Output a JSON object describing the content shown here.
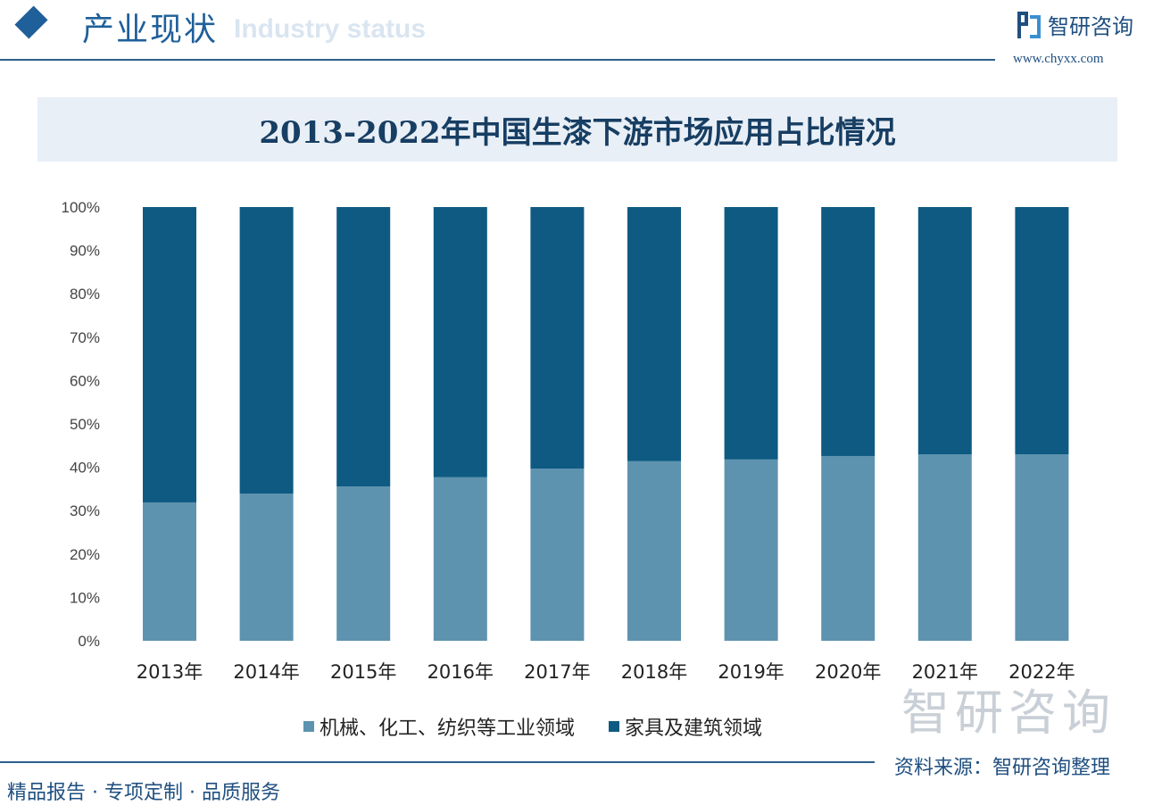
{
  "header": {
    "title": "产业现状",
    "subtitle": "Industry status",
    "brand": "智研咨询",
    "url": "www.chyxx.com"
  },
  "chart_data": {
    "type": "bar",
    "stacked": true,
    "percent": true,
    "title": "2013-2022年中国生漆下游市场应用占比情况",
    "categories": [
      "2013年",
      "2014年",
      "2015年",
      "2016年",
      "2017年",
      "2018年",
      "2019年",
      "2020年",
      "2021年",
      "2022年"
    ],
    "series": [
      {
        "name": "机械、化工、纺织等工业领域",
        "color": "#5e93b0",
        "values": [
          31.9,
          33.9,
          35.6,
          37.7,
          39.7,
          41.4,
          41.8,
          42.6,
          43.0,
          43.0
        ]
      },
      {
        "name": "家具及建筑领域",
        "color": "#0e5a82",
        "values": [
          68.1,
          66.1,
          64.4,
          62.3,
          60.3,
          58.6,
          58.2,
          57.4,
          57.0,
          57.0
        ]
      }
    ],
    "ylim": [
      0,
      100
    ],
    "yticks": [
      "0%",
      "10%",
      "20%",
      "30%",
      "40%",
      "50%",
      "60%",
      "70%",
      "80%",
      "90%",
      "100%"
    ],
    "legend": "bottom",
    "grid": false
  },
  "watermark": "智研咨询",
  "footer": {
    "source": "资料来源：智研咨询整理",
    "slogan": "精品报告 · 专项定制 · 品质服务"
  }
}
